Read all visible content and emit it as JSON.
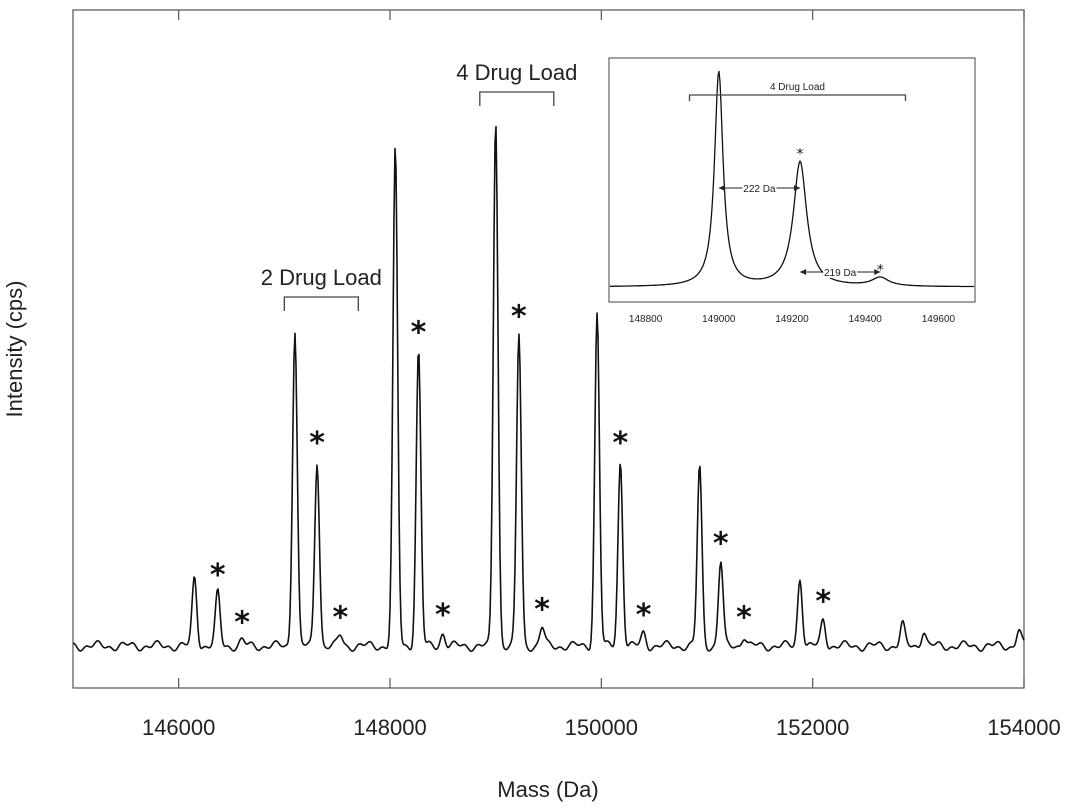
{
  "chart_data": [
    {
      "type": "line",
      "xlabel": "Mass (Da)",
      "ylabel": "Intensity (cps)",
      "xlim": [
        145000,
        154000
      ],
      "ylim": [
        0,
        100
      ],
      "x_ticks": [
        146000,
        148000,
        150000,
        152000,
        154000
      ],
      "x_tick_labels": [
        "146000",
        "148000",
        "150000",
        "152000",
        "154000"
      ],
      "grid": false,
      "peaks": [
        {
          "x": 146150,
          "y": 13
        },
        {
          "x": 146370,
          "y": 10
        },
        {
          "x": 146600,
          "y": 1
        },
        {
          "x": 147100,
          "y": 60
        },
        {
          "x": 147310,
          "y": 35
        },
        {
          "x": 147530,
          "y": 2
        },
        {
          "x": 148050,
          "y": 94
        },
        {
          "x": 148270,
          "y": 56
        },
        {
          "x": 148500,
          "y": 2.5
        },
        {
          "x": 149000,
          "y": 100
        },
        {
          "x": 149220,
          "y": 59
        },
        {
          "x": 149440,
          "y": 3.5
        },
        {
          "x": 149960,
          "y": 63
        },
        {
          "x": 150180,
          "y": 35
        },
        {
          "x": 150400,
          "y": 2.5
        },
        {
          "x": 150930,
          "y": 34
        },
        {
          "x": 151130,
          "y": 16
        },
        {
          "x": 151350,
          "y": 2
        },
        {
          "x": 151880,
          "y": 13
        },
        {
          "x": 152100,
          "y": 5
        },
        {
          "x": 152850,
          "y": 4
        },
        {
          "x": 153050,
          "y": 3
        },
        {
          "x": 153950,
          "y": 3
        }
      ],
      "starred_peaks_x": [
        146370,
        146600,
        147310,
        147530,
        148270,
        148500,
        149220,
        149440,
        150180,
        150400,
        151130,
        151350,
        152100
      ],
      "star_symbol": "*",
      "annotations": [
        {
          "text": "2 Drug Load",
          "x_from": 147000,
          "x_to": 147700
        },
        {
          "text": "4 Drug Load",
          "x_from": 148850,
          "x_to": 149550
        }
      ]
    },
    {
      "type": "line",
      "placement": "top-right inset",
      "xlim": [
        148700,
        149700
      ],
      "ylim": [
        0,
        100
      ],
      "x_ticks": [
        148800,
        149000,
        149200,
        149400,
        149600
      ],
      "x_tick_labels": [
        "148800",
        "149000",
        "149200",
        "149400",
        "149600"
      ],
      "peaks": [
        {
          "x": 149000,
          "y": 100
        },
        {
          "x": 149222,
          "y": 58
        },
        {
          "x": 149441,
          "y": 4
        }
      ],
      "star_symbol": "*",
      "annotations": [
        {
          "text": "4 Drug Load",
          "x_from": 148920,
          "x_to": 149510
        },
        {
          "text": "222 Da",
          "x_from": 149000,
          "x_to": 149222
        },
        {
          "text": "219 Da",
          "x_from": 149222,
          "x_to": 149441
        }
      ]
    }
  ]
}
